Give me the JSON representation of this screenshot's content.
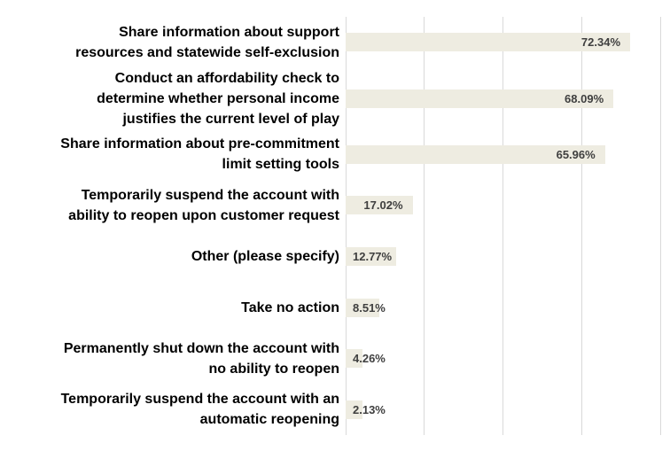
{
  "chart_data": {
    "type": "bar",
    "orientation": "horizontal",
    "title": "",
    "xlabel": "",
    "ylabel": "",
    "xlim": [
      0,
      80
    ],
    "grid": true,
    "gridline_percents": [
      0,
      20,
      40,
      60,
      80
    ],
    "categories": [
      "Share information about support\nresources and statewide self-exclusion",
      "Conduct an affordability check to\ndetermine whether personal income\njustifies the current level of play",
      "Share information about pre-commitment\nlimit setting tools",
      "Temporarily suspend the account with\nability to reopen upon customer request",
      "Other (please specify)",
      "Take no action",
      "Permanently shut down the account with\nno ability to reopen",
      "Temporarily suspend the account with an\nautomatic reopening"
    ],
    "values": [
      72.34,
      68.09,
      65.96,
      17.02,
      12.77,
      8.51,
      4.26,
      2.13
    ],
    "value_labels": [
      "72.34%",
      "68.09%",
      "65.96%",
      "17.02%",
      "12.77%",
      "8.51%",
      "4.26%",
      "2.13%"
    ],
    "colors": {
      "bar_fill": "#eeece1",
      "gridline": "#d9d9d9",
      "value_label": "#3f3f3f",
      "category_label": "#000000",
      "background": "#ffffff"
    }
  }
}
